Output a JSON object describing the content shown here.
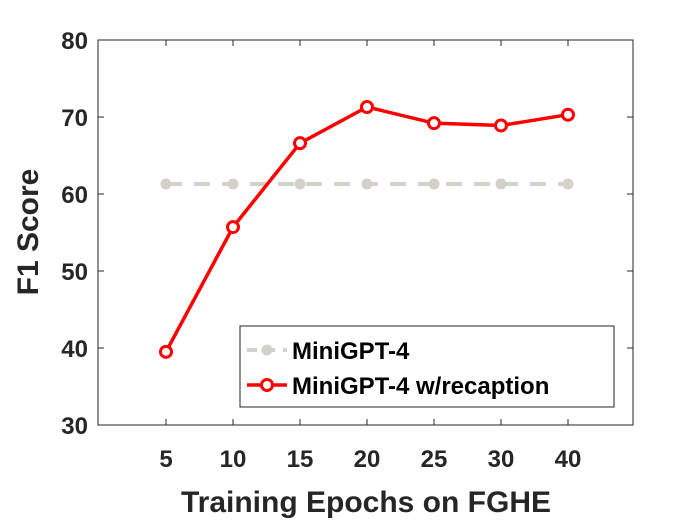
{
  "chart_data": {
    "type": "line",
    "xlabel": "Training Epochs on FGHE",
    "ylabel": "F1 Score",
    "categories": [
      "5",
      "10",
      "15",
      "20",
      "25",
      "30",
      "40"
    ],
    "ylim": [
      30,
      80
    ],
    "yticks": [
      "30",
      "40",
      "50",
      "60",
      "70",
      "80"
    ],
    "grid": false,
    "legend_position": "bottom-right",
    "series": [
      {
        "name": "MiniGPT-4",
        "values": [
          61.3,
          61.3,
          61.3,
          61.3,
          61.3,
          61.3,
          61.3
        ],
        "color": "#d4d1cc",
        "line_style": "dashed",
        "marker": "filled-circle"
      },
      {
        "name": "MiniGPT-4 w/recaption",
        "values": [
          39.5,
          55.7,
          66.6,
          71.3,
          69.2,
          68.9,
          70.3
        ],
        "color": "#ff0000",
        "line_style": "solid",
        "marker": "open-circle"
      }
    ]
  }
}
